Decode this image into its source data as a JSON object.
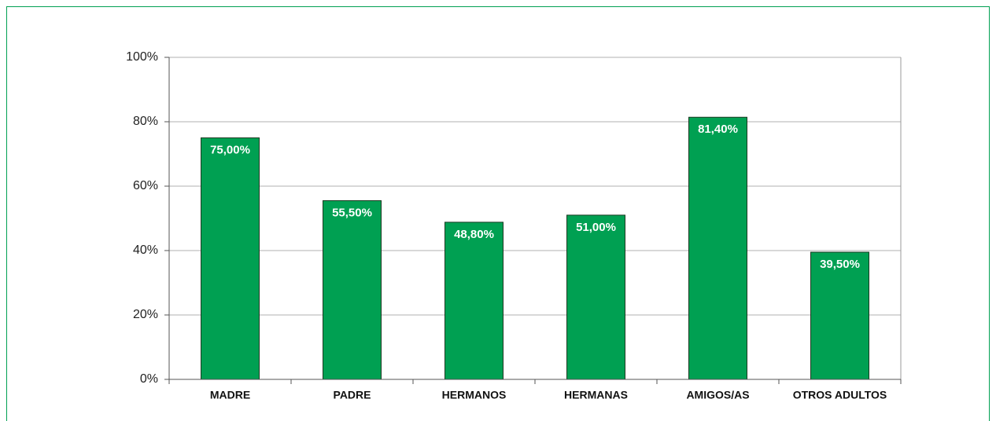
{
  "chart_data": {
    "type": "bar",
    "categories": [
      "MADRE",
      "PADRE",
      "HERMANOS",
      "HERMANAS",
      "AMIGOS/AS",
      "OTROS ADULTOS"
    ],
    "values": [
      75,
      55.5,
      48.8,
      51,
      81.4,
      39.5
    ],
    "value_labels": [
      "75,00%",
      "55,50%",
      "48,80%",
      "51,00%",
      "81,40%",
      "39,50%"
    ],
    "color": "#00a052",
    "ylim": [
      0,
      100
    ],
    "yticks": [
      {
        "value": 0,
        "label": "0%"
      },
      {
        "value": 20,
        "label": "20%"
      },
      {
        "value": 40,
        "label": "40%"
      },
      {
        "value": 60,
        "label": "60%"
      },
      {
        "value": 80,
        "label": "80%"
      },
      {
        "value": 100,
        "label": "100%"
      }
    ],
    "grid": true
  }
}
